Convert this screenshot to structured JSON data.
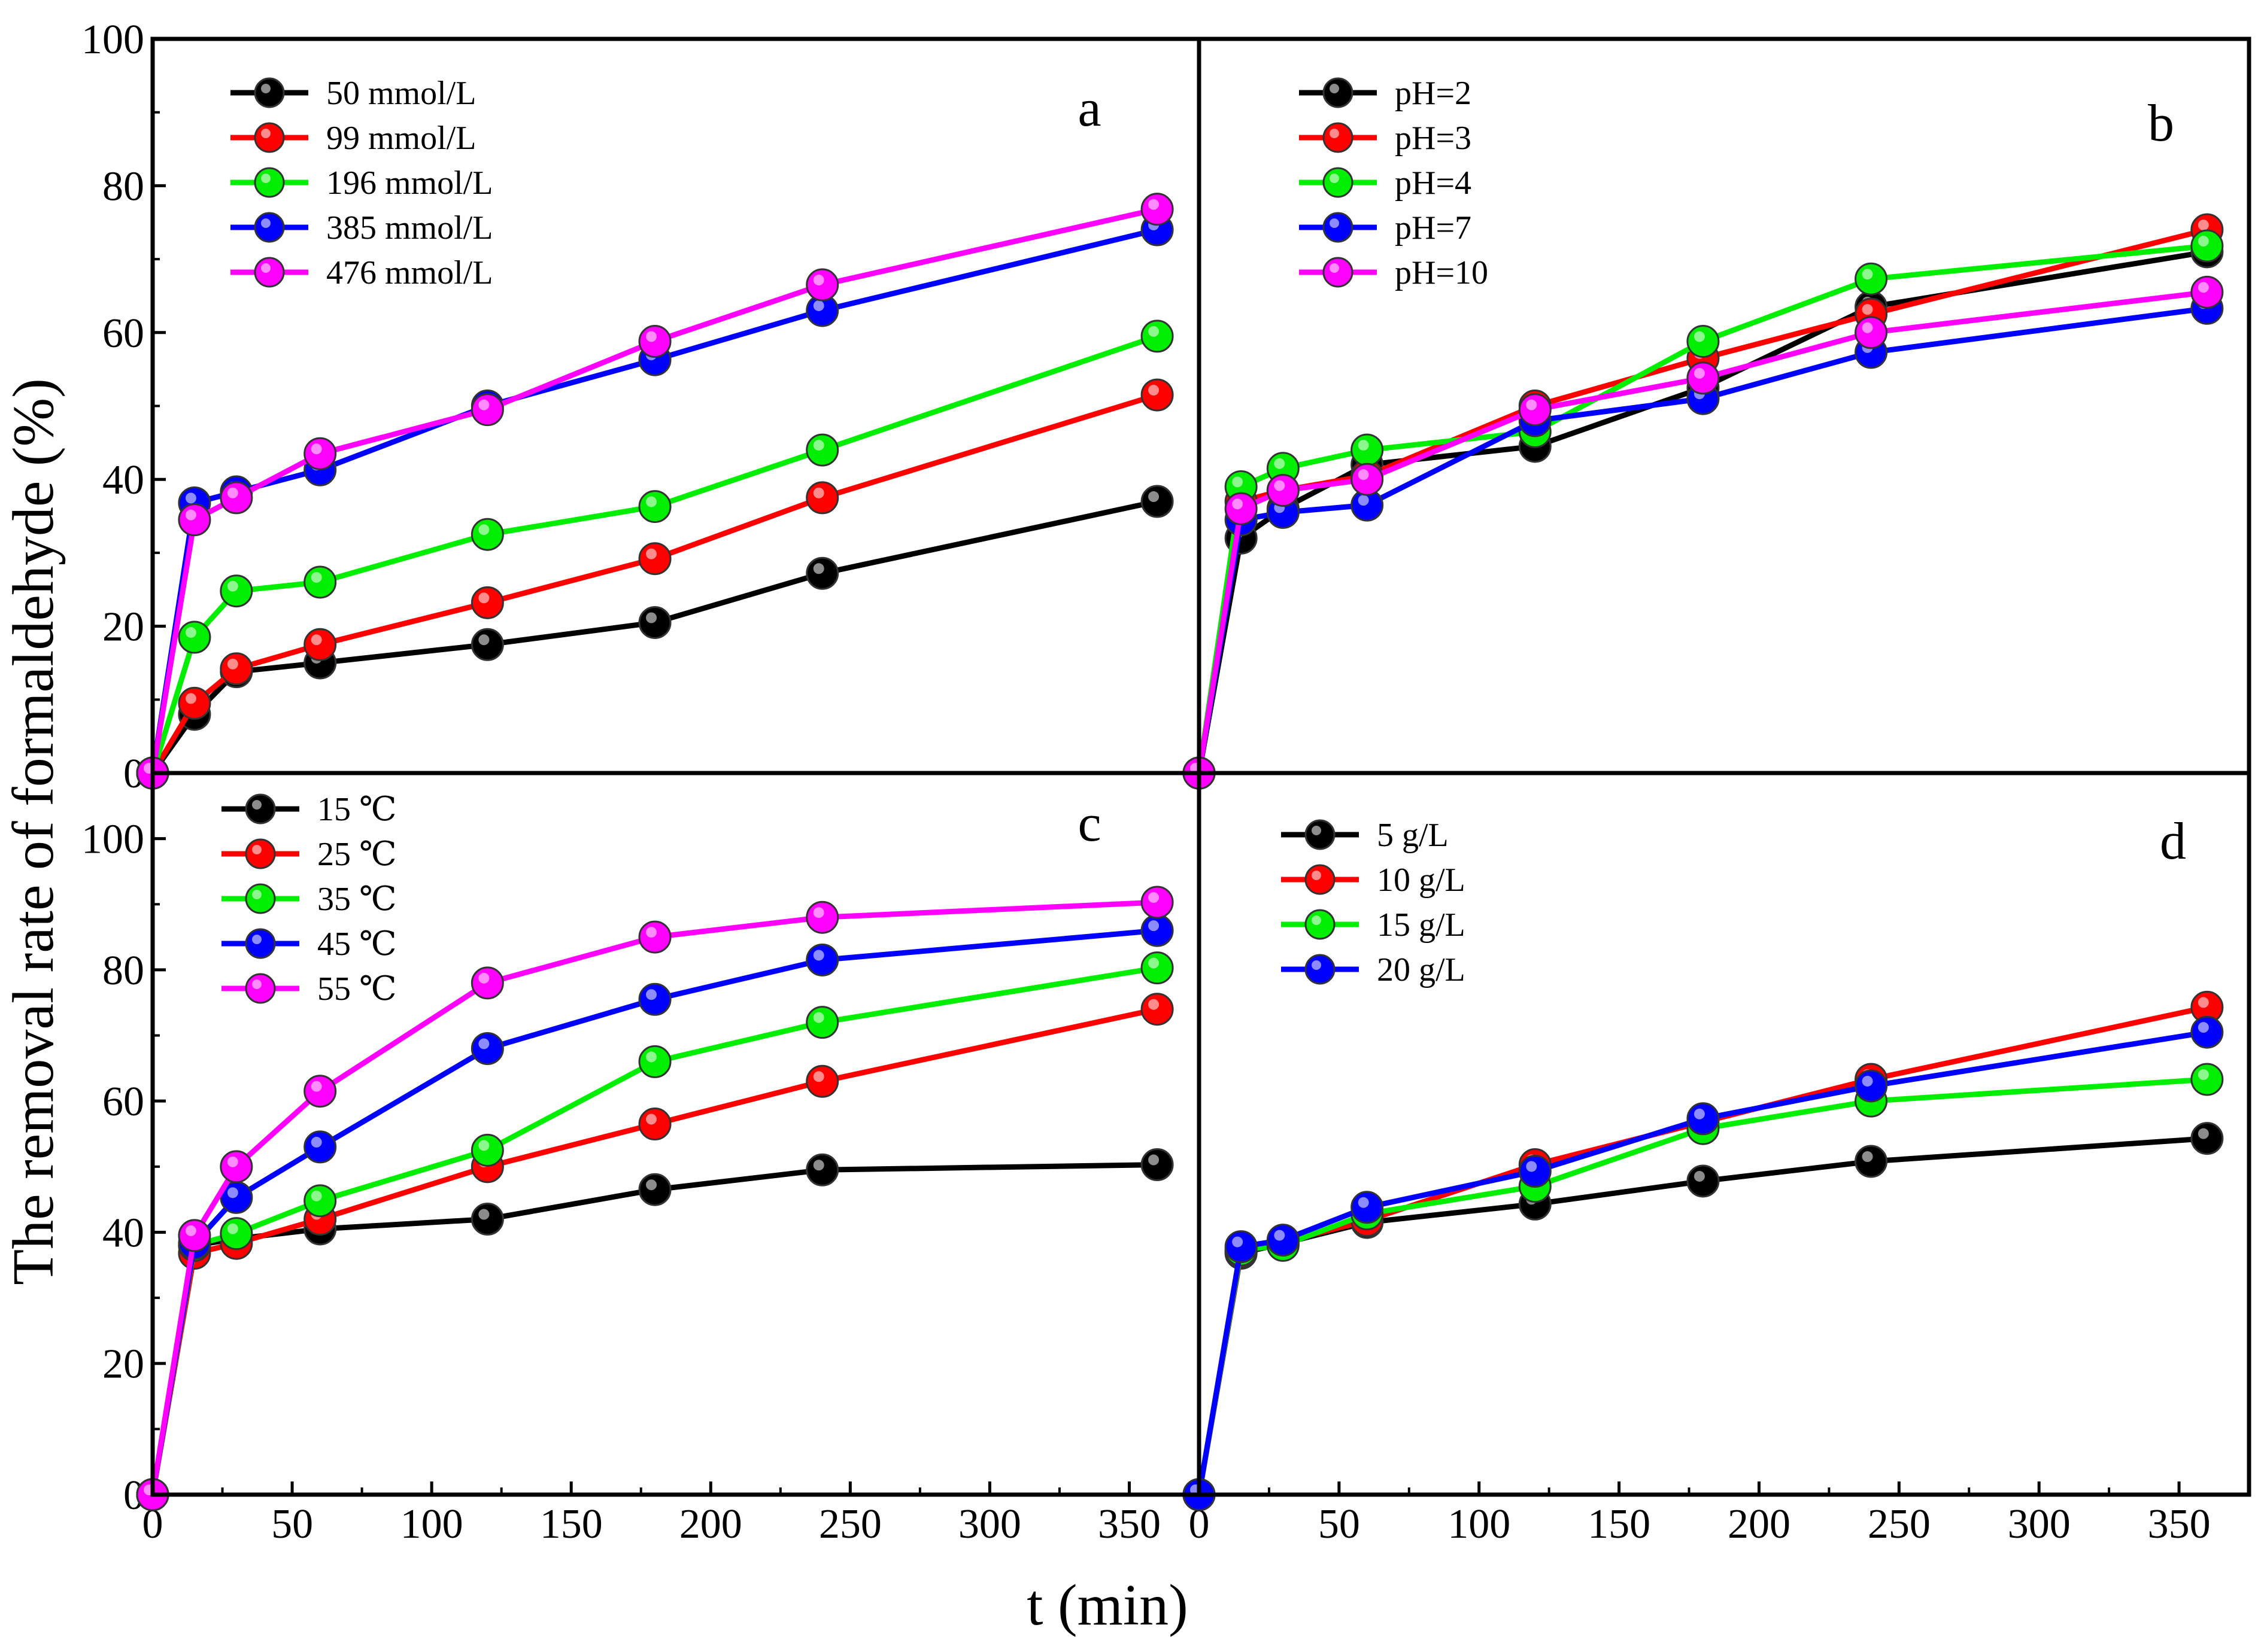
{
  "figure": {
    "ylabel": "The removal rate of formaldehyde (%)",
    "xlabel": "t (min)"
  },
  "chart_data": [
    {
      "panel": "a",
      "type": "line",
      "x": [
        0,
        15,
        30,
        60,
        120,
        180,
        240,
        360
      ],
      "xlim": [
        0,
        375
      ],
      "ylim": [
        0,
        100
      ],
      "xticks": [
        "0",
        "50",
        "100",
        "150",
        "200",
        "250",
        "300",
        "350"
      ],
      "yticks": [
        "0",
        "20",
        "40",
        "60",
        "80",
        "100"
      ],
      "series": [
        {
          "name": "50 mmol/L",
          "color": "#000000",
          "values": [
            0,
            8,
            13.8,
            15,
            17.5,
            20.5,
            27.2,
            37
          ]
        },
        {
          "name": "99 mmol/L",
          "color": "#ff0000",
          "values": [
            0,
            9.5,
            14.2,
            17.5,
            23.2,
            29.2,
            37.5,
            51.5
          ]
        },
        {
          "name": "196 mmol/L",
          "color": "#00ee00",
          "values": [
            0,
            18.5,
            24.8,
            26,
            32.5,
            36.3,
            44,
            59.5
          ]
        },
        {
          "name": "385 mmol/L",
          "color": "#0000ff",
          "values": [
            0,
            36.8,
            38.3,
            41.3,
            50,
            56.3,
            63,
            74
          ]
        },
        {
          "name": "476 mmol/L",
          "color": "#ff00ff",
          "values": [
            0,
            34.5,
            37.5,
            43.5,
            49.5,
            58.8,
            66.5,
            76.8
          ]
        }
      ]
    },
    {
      "panel": "b",
      "type": "line",
      "x": [
        0,
        15,
        30,
        60,
        120,
        180,
        240,
        360
      ],
      "xlim": [
        0,
        375
      ],
      "ylim": [
        0,
        100
      ],
      "xticks": [
        "0",
        "50",
        "100",
        "150",
        "200",
        "250",
        "300",
        "350"
      ],
      "series": [
        {
          "name": "pH=2",
          "color": "#000000",
          "values": [
            0,
            32,
            36,
            42,
            44.5,
            52.5,
            63.5,
            71
          ]
        },
        {
          "name": "pH=3",
          "color": "#ff0000",
          "values": [
            0,
            37,
            38.5,
            40.5,
            50,
            56.5,
            62.5,
            74
          ]
        },
        {
          "name": "pH=4",
          "color": "#00ee00",
          "values": [
            0,
            39,
            41.5,
            44,
            46.5,
            58.8,
            67.3,
            71.8
          ]
        },
        {
          "name": "pH=7",
          "color": "#0000ff",
          "values": [
            0,
            34.5,
            35.5,
            36.5,
            48,
            51,
            57.3,
            63.3
          ]
        },
        {
          "name": "pH=10",
          "color": "#ff00ff",
          "values": [
            0,
            36,
            38.5,
            40,
            49.5,
            53.8,
            60,
            65.5
          ]
        }
      ]
    },
    {
      "panel": "c",
      "type": "line",
      "x": [
        0,
        15,
        30,
        60,
        120,
        180,
        240,
        360
      ],
      "xlim": [
        0,
        375
      ],
      "ylim": [
        0,
        110
      ],
      "xticks": [
        "0",
        "50",
        "100",
        "150",
        "200",
        "250",
        "300",
        "350"
      ],
      "yticks": [
        "0",
        "20",
        "40",
        "60",
        "80",
        "100"
      ],
      "series": [
        {
          "name": "15 ℃",
          "color": "#000000",
          "values": [
            0,
            38,
            39,
            40.5,
            42,
            46.5,
            49.5,
            50.3
          ]
        },
        {
          "name": "25 ℃",
          "color": "#ff0000",
          "values": [
            0,
            36.8,
            38.3,
            42,
            50,
            56.5,
            63,
            74
          ]
        },
        {
          "name": "35 ℃",
          "color": "#00ee00",
          "values": [
            0,
            38,
            39.8,
            44.8,
            52.5,
            66,
            72,
            80.3
          ]
        },
        {
          "name": "45 ℃",
          "color": "#0000ff",
          "values": [
            0,
            38.3,
            45.3,
            53,
            68,
            75.5,
            81.5,
            86
          ]
        },
        {
          "name": "55 ℃",
          "color": "#ff00ff",
          "values": [
            0,
            39.5,
            50,
            61.5,
            78,
            85,
            88,
            90.3
          ]
        }
      ]
    },
    {
      "panel": "d",
      "type": "line",
      "x": [
        0,
        15,
        30,
        60,
        120,
        180,
        240,
        360
      ],
      "xlim": [
        0,
        375
      ],
      "ylim": [
        0,
        110
      ],
      "xticks": [
        "0",
        "50",
        "100",
        "150",
        "200",
        "250",
        "300",
        "350"
      ],
      "series": [
        {
          "name": "5 g/L",
          "color": "#000000",
          "values": [
            0,
            36.8,
            38.3,
            41.5,
            44.3,
            47.8,
            50.8,
            54.3
          ]
        },
        {
          "name": "10 g/L",
          "color": "#ff0000",
          "values": [
            0,
            37,
            38.5,
            41.8,
            50.3,
            56.8,
            63.3,
            74.3
          ]
        },
        {
          "name": "15 g/L",
          "color": "#00ee00",
          "values": [
            0,
            37.3,
            38,
            42.8,
            47,
            55.8,
            60,
            63.3
          ]
        },
        {
          "name": "20 g/L",
          "color": "#0000ff",
          "values": [
            0,
            37.8,
            38.8,
            43.8,
            49.3,
            57.3,
            62.3,
            70.5
          ]
        }
      ]
    }
  ]
}
